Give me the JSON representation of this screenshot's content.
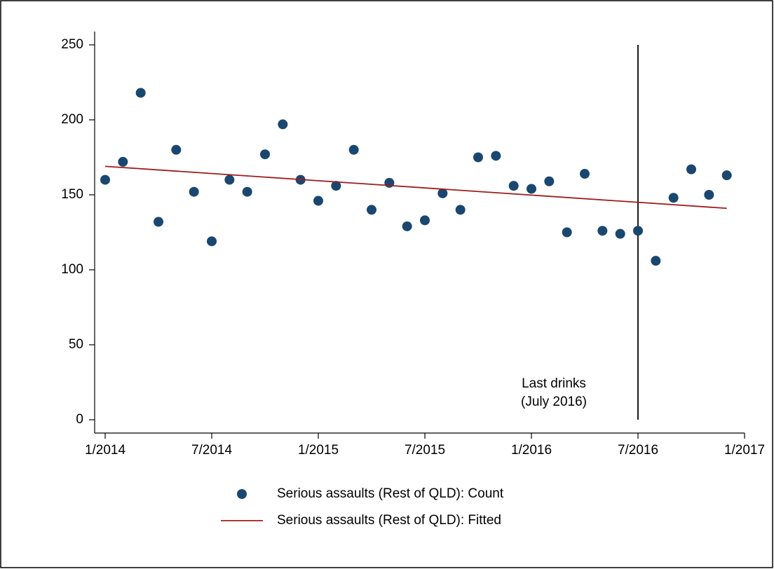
{
  "chart_data": {
    "type": "scatter",
    "x": [
      "2014-01",
      "2014-02",
      "2014-03",
      "2014-04",
      "2014-05",
      "2014-06",
      "2014-07",
      "2014-08",
      "2014-09",
      "2014-10",
      "2014-11",
      "2014-12",
      "2015-01",
      "2015-02",
      "2015-03",
      "2015-04",
      "2015-05",
      "2015-06",
      "2015-07",
      "2015-08",
      "2015-09",
      "2015-10",
      "2015-11",
      "2015-12",
      "2016-01",
      "2016-02",
      "2016-03",
      "2016-04",
      "2016-05",
      "2016-06",
      "2016-07",
      "2016-08",
      "2016-09",
      "2016-10",
      "2016-11",
      "2016-12"
    ],
    "series": [
      {
        "name": "Serious assaults (Rest of QLD): Count",
        "type": "scatter",
        "color": "#1a476f",
        "values": [
          160,
          172,
          218,
          132,
          180,
          152,
          119,
          160,
          152,
          177,
          197,
          160,
          146,
          156,
          180,
          140,
          158,
          129,
          133,
          151,
          140,
          175,
          176,
          156,
          154,
          159,
          125,
          164,
          126,
          124,
          126,
          106,
          148,
          167,
          150,
          163
        ]
      },
      {
        "name": "Serious assaults (Rest of QLD): Fitted",
        "type": "line",
        "color": "#a01c1c",
        "x": [
          "2014-01",
          "2016-12"
        ],
        "values": [
          169,
          141
        ]
      }
    ],
    "xlim": [
      "2014-01",
      "2017-01"
    ],
    "xticks": [
      {
        "value": "2014-01",
        "label": "1/2014"
      },
      {
        "value": "2014-07",
        "label": "7/2014"
      },
      {
        "value": "2015-01",
        "label": "1/2015"
      },
      {
        "value": "2015-07",
        "label": "7/2015"
      },
      {
        "value": "2016-01",
        "label": "1/2016"
      },
      {
        "value": "2016-07",
        "label": "7/2016"
      },
      {
        "value": "2017-01",
        "label": "1/2017"
      }
    ],
    "ylim": [
      0,
      250
    ],
    "yticks": [
      0,
      50,
      100,
      150,
      200,
      250
    ],
    "vline": "2016-07",
    "annotation": [
      "Last drinks",
      "(July 2016)"
    ],
    "grid": false,
    "legend": "bottom"
  }
}
